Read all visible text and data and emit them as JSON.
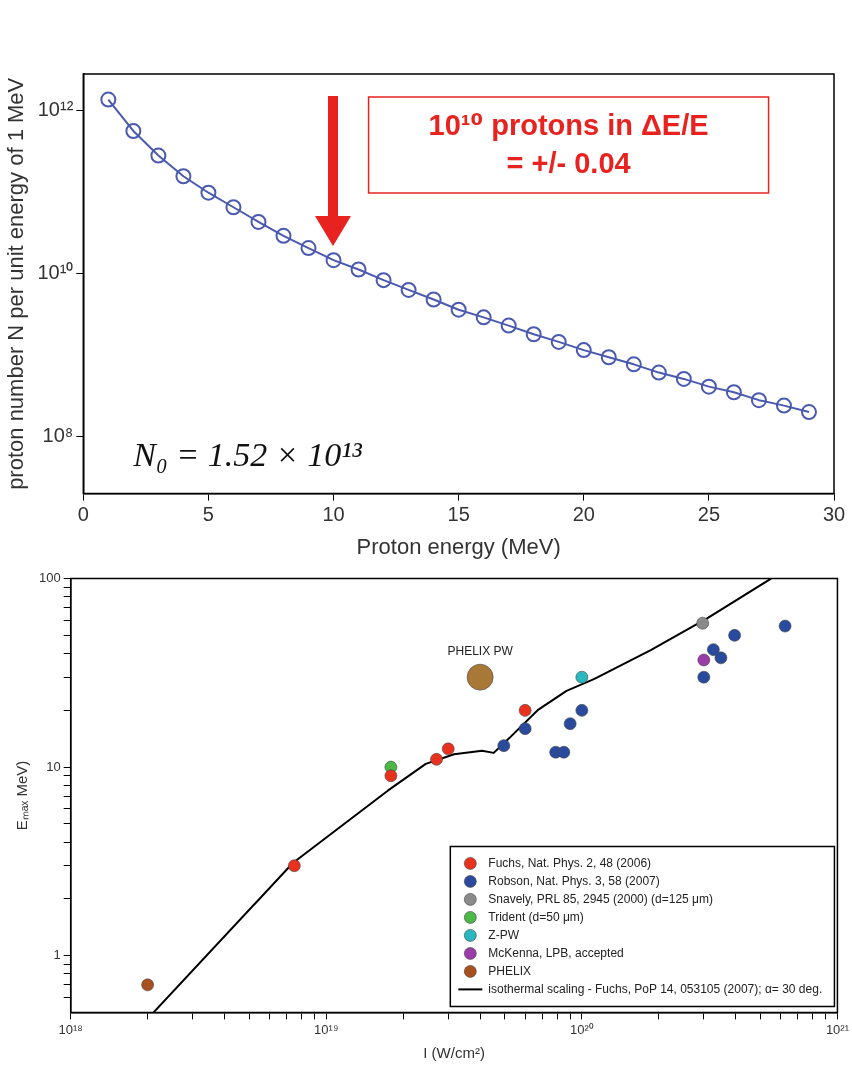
{
  "chart_data": [
    {
      "type": "line",
      "xlabel": "Proton energy (MeV)",
      "ylabel": "proton number N per unit energy of 1 MeV",
      "log": "y",
      "xlim": [
        0,
        30
      ],
      "ylim": [
        20000000.0,
        2800000000000.0
      ],
      "xticks": [
        0,
        5,
        10,
        15,
        20,
        25,
        30
      ],
      "yticks": [
        {
          "value": 100000000.0,
          "label": "10⁸"
        },
        {
          "value": 10000000000.0,
          "label": "10¹⁰"
        },
        {
          "value": 1000000000000.0,
          "label": "10¹²"
        }
      ],
      "marker": "circle",
      "line_style": "solid",
      "color": "#4a5ab0",
      "x": [
        1,
        2,
        3,
        4,
        5,
        6,
        7,
        8,
        9,
        10,
        11,
        12,
        13,
        14,
        15,
        16,
        17,
        18,
        19,
        20,
        21,
        22,
        23,
        24,
        25,
        26,
        27,
        28,
        29
      ],
      "values": [
        1360000000000.0,
        560000000000.0,
        280000000000.0,
        156000000000.0,
        98000000000.0,
        65000000000.0,
        43000000000.0,
        29000000000.0,
        20500000000.0,
        14600000000.0,
        11200000000.0,
        8300000000.0,
        6300000000.0,
        4800000000.0,
        3600000000.0,
        2900000000.0,
        2300000000.0,
        1800000000.0,
        1450000000.0,
        1150000000.0,
        940000000.0,
        770000000.0,
        610000000.0,
        510000000.0,
        410000000.0,
        350000000.0,
        280000000.0,
        240000000.0,
        200000000.0
      ],
      "annotations": [
        "10¹⁰ protons in ΔE/E = +/- 0.04",
        "N₀ = 1.52 × 10¹³"
      ]
    },
    {
      "type": "scatter",
      "xlabel": "I (W/cm²)",
      "ylabel": "Eₘₐₓ MeV)",
      "log": "xy",
      "xlim": [
        1e+18,
        1e+21
      ],
      "ylim": [
        0.5,
        100
      ],
      "xticks": [
        {
          "value": 1e+18,
          "label": "10¹⁸"
        },
        {
          "value": 2e+18,
          "label": null
        },
        {
          "value": 3e+18,
          "label": null
        },
        {
          "value": 4e+18,
          "label": null
        },
        {
          "value": 5e+18,
          "label": null
        },
        {
          "value": 6e+18,
          "label": null
        },
        {
          "value": 7e+18,
          "label": null
        },
        {
          "value": 8e+18,
          "label": null
        },
        {
          "value": 9e+18,
          "label": null
        },
        {
          "value": 1e+19,
          "label": "10¹⁹"
        },
        {
          "value": 2e+19,
          "label": null
        },
        {
          "value": 3e+19,
          "label": null
        },
        {
          "value": 4e+19,
          "label": null
        },
        {
          "value": 5e+19,
          "label": null
        },
        {
          "value": 6e+19,
          "label": null
        },
        {
          "value": 7e+19,
          "label": null
        },
        {
          "value": 8e+19,
          "label": null
        },
        {
          "value": 9e+19,
          "label": null
        },
        {
          "value": 1e+20,
          "label": "10²⁰"
        },
        {
          "value": 2e+20,
          "label": null
        },
        {
          "value": 3e+20,
          "label": null
        },
        {
          "value": 4e+20,
          "label": null
        },
        {
          "value": 5e+20,
          "label": null
        },
        {
          "value": 6e+20,
          "label": null
        },
        {
          "value": 7e+20,
          "label": null
        },
        {
          "value": 8e+20,
          "label": null
        },
        {
          "value": 9e+20,
          "label": null
        },
        {
          "value": 1e+21,
          "label": "10²¹"
        }
      ],
      "yticks": [
        {
          "value": 0.6,
          "label": null
        },
        {
          "value": 0.7,
          "label": null
        },
        {
          "value": 0.8,
          "label": null
        },
        {
          "value": 0.9,
          "label": null
        },
        1,
        {
          "value": 2,
          "label": null
        },
        {
          "value": 3,
          "label": null
        },
        {
          "value": 4,
          "label": null
        },
        {
          "value": 5,
          "label": null
        },
        {
          "value": 6,
          "label": null
        },
        {
          "value": 7,
          "label": null
        },
        {
          "value": 8,
          "label": null
        },
        {
          "value": 9,
          "label": null
        },
        10,
        {
          "value": 20,
          "label": null
        },
        {
          "value": 30,
          "label": null
        },
        {
          "value": 40,
          "label": null
        },
        {
          "value": 50,
          "label": null
        },
        {
          "value": 60,
          "label": null
        },
        {
          "value": 70,
          "label": null
        },
        {
          "value": 80,
          "label": null
        },
        {
          "value": 90,
          "label": null
        },
        100
      ],
      "legend": "bottom right",
      "marker": "circle",
      "series": [
        {
          "name": "Fuchs, Nat. Phys. 2, 48 (2006)",
          "color": "#e8321e",
          "x": [
            7.5e+18,
            1.79e+19,
            2.7e+19,
            3e+19,
            6e+19
          ],
          "values": [
            3.0,
            9.0,
            11.0,
            12.5,
            20
          ]
        },
        {
          "name": "Robson, Nat. Phys. 3, 58 (2007)",
          "color": "#2a4a9e",
          "x": [
            4.95e+19,
            6e+19,
            7.9e+19,
            8.5e+19,
            9e+19,
            1e+20,
            3e+20,
            3.27e+20,
            3.5e+20,
            3.96e+20,
            6.24e+20
          ],
          "values": [
            13,
            16,
            12,
            12,
            17,
            20,
            30,
            42,
            38,
            50,
            56
          ]
        },
        {
          "name": "Snavely, PRL 85, 2945 (2000) (d=125 μm)",
          "color": "#8a8a8a",
          "x": [
            2.97e+20
          ],
          "values": [
            58
          ]
        },
        {
          "name": "Trident (d=50 μm)",
          "color": "#4cb848",
          "x": [
            1.79e+19
          ],
          "values": [
            10
          ]
        },
        {
          "name": "Z-PW",
          "color": "#2ab8c0",
          "x": [
            1e+20
          ],
          "values": [
            30
          ]
        },
        {
          "name": "McKenna, LPB, accepted",
          "color": "#9a3ca8",
          "x": [
            3e+20
          ],
          "values": [
            37
          ]
        },
        {
          "name": "PHELIX",
          "color": "#a8501e",
          "x": [
            2e+18
          ],
          "values": [
            0.7
          ]
        },
        {
          "name": "PHELIX PW",
          "type": "bubble",
          "color": "#a97836",
          "x": [
            4e+19
          ],
          "values": [
            30
          ],
          "sizes": [
            1
          ]
        },
        {
          "name": "isothermal scaling - Fuchs, PoP 14, 053105 (2007); α= 30 deg.",
          "type": "line",
          "marker": "none",
          "color": "#000000",
          "x": [
            2.11e+18,
            7.4e+18,
            1.74e+19,
            2.45e+19,
            3.16e+19,
            4.07e+19,
            4.52e+19,
            5.13e+19,
            6.76e+19,
            8.71e+19,
            1.12e+20,
            1.86e+20,
            3.09e+20,
            5.5e+20
          ],
          "values": [
            0.5,
            3.1,
            7.5,
            10.4,
            11.7,
            12.2,
            11.9,
            14,
            20.2,
            25.4,
            29.4,
            41.7,
            61.5,
            100
          ]
        }
      ]
    }
  ]
}
